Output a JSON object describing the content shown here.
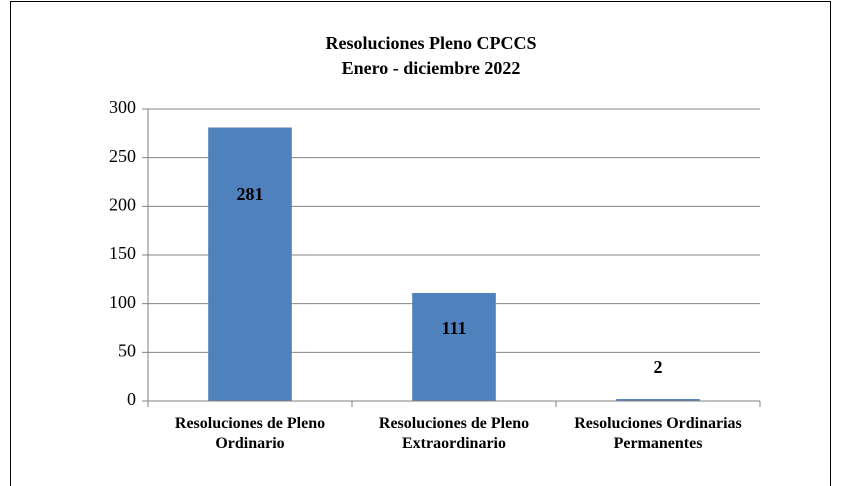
{
  "chart_data": {
    "type": "bar",
    "title": "Resoluciones Pleno CPCCS",
    "subtitle": "Enero - diciembre 2022",
    "categories": [
      "Resoluciones de Pleno Ordinario",
      "Resoluciones de Pleno Extraordinario",
      "Resoluciones Ordinarias Permanentes"
    ],
    "values": [
      281,
      111,
      2
    ],
    "color": "#4f81bd",
    "ylim": [
      0,
      300
    ],
    "yticks": [
      0,
      50,
      100,
      150,
      200,
      250,
      300
    ],
    "grid": true
  }
}
